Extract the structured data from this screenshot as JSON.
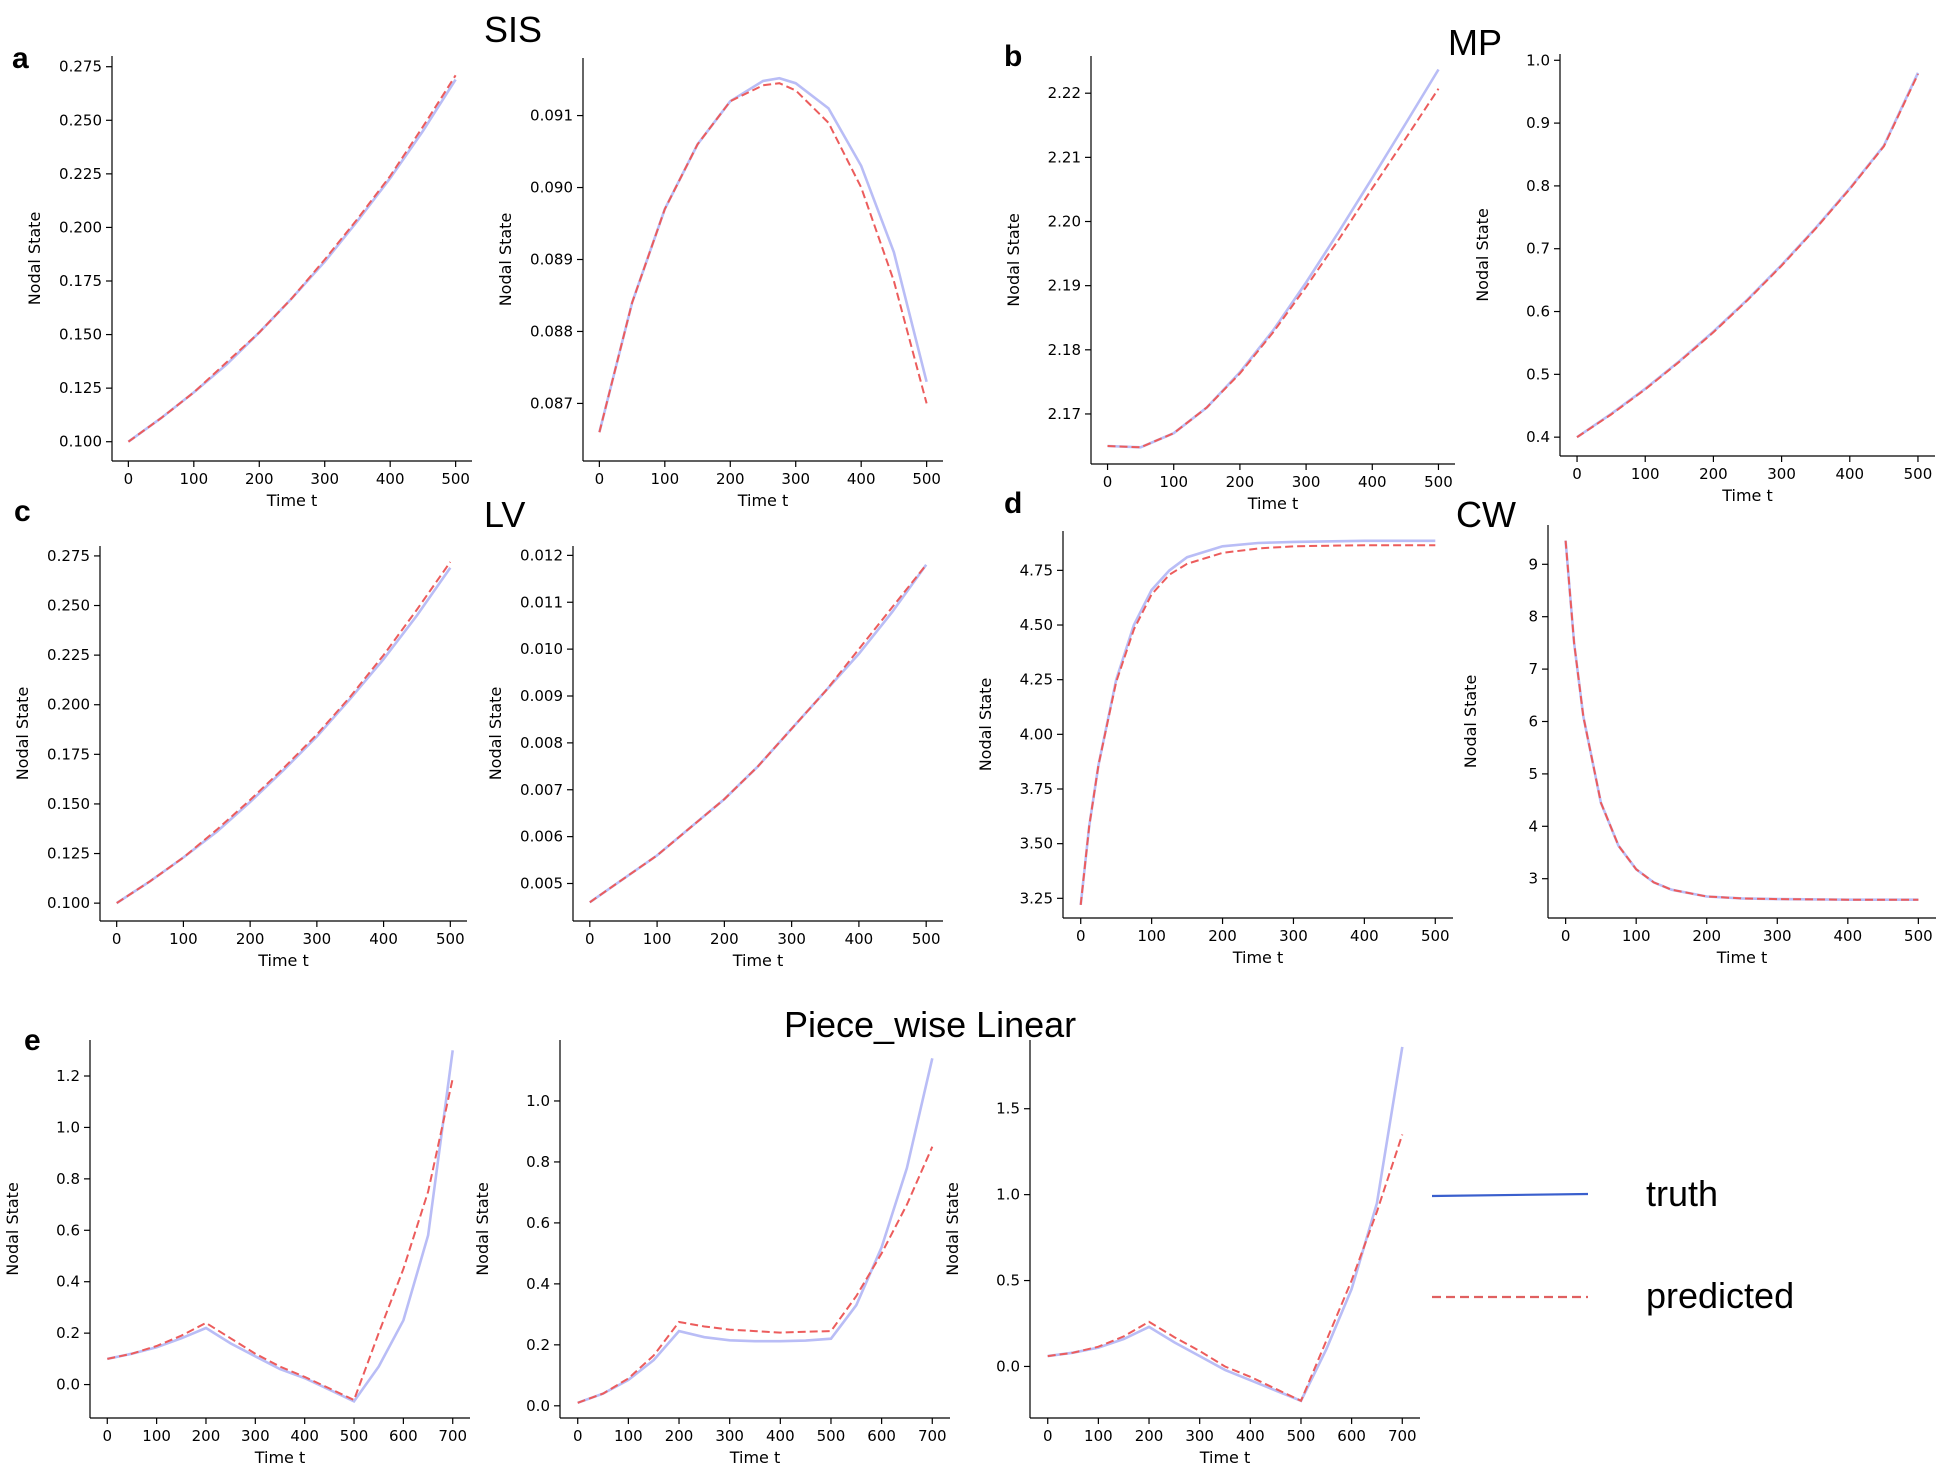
{
  "figure": {
    "panel_letters": [
      "a",
      "b",
      "c",
      "d",
      "e"
    ],
    "group_titles": [
      "SIS",
      "MP",
      "LV",
      "CW",
      "Piece_wise Linear"
    ]
  },
  "legend": {
    "truth_label": "truth",
    "predicted_label": "predicted",
    "truth_color": "#3a5fcd",
    "predicted_color": "#e06060"
  },
  "colors": {
    "truth_plot": "#b9bdf6",
    "predicted_plot": "#ec5c5c"
  },
  "chart_data": [
    {
      "type": "line",
      "xlabel": "Time t",
      "ylabel": "Nodal State",
      "xticks": [
        0,
        100,
        200,
        300,
        400,
        500
      ],
      "xlim": [
        -25,
        525
      ],
      "yticks": [
        "0.100",
        "0.125",
        "0.150",
        "0.175",
        "0.200",
        "0.225",
        "0.250",
        "0.275"
      ],
      "ylim": [
        0.091,
        0.28
      ],
      "series": [
        {
          "name": "truth",
          "x": [
            0,
            50,
            100,
            150,
            200,
            250,
            300,
            350,
            400,
            450,
            500
          ],
          "y": [
            0.1,
            0.111,
            0.123,
            0.136,
            0.151,
            0.167,
            0.184,
            0.203,
            0.223,
            0.245,
            0.269
          ]
        },
        {
          "name": "predicted",
          "x": [
            0,
            50,
            100,
            150,
            200,
            250,
            300,
            350,
            400,
            450,
            500
          ],
          "y": [
            0.1,
            0.111,
            0.123,
            0.137,
            0.151,
            0.167,
            0.185,
            0.204,
            0.224,
            0.247,
            0.271
          ]
        }
      ]
    },
    {
      "type": "line",
      "xlabel": "Time t",
      "ylabel": "Nodal State",
      "xticks": [
        0,
        100,
        200,
        300,
        400,
        500
      ],
      "xlim": [
        -25,
        525
      ],
      "yticks": [
        "0.087",
        "0.088",
        "0.089",
        "0.090",
        "0.091"
      ],
      "ylim": [
        0.0862,
        0.0918
      ],
      "series": [
        {
          "name": "truth",
          "x": [
            0,
            50,
            100,
            150,
            200,
            250,
            275,
            300,
            350,
            400,
            450,
            500
          ],
          "y": [
            0.0866,
            0.0884,
            0.0897,
            0.0906,
            0.0912,
            0.09148,
            0.09152,
            0.09145,
            0.0911,
            0.0903,
            0.0891,
            0.0873
          ]
        },
        {
          "name": "predicted",
          "x": [
            0,
            50,
            100,
            150,
            200,
            250,
            275,
            300,
            350,
            400,
            450,
            500
          ],
          "y": [
            0.0866,
            0.0884,
            0.0897,
            0.0906,
            0.0912,
            0.09142,
            0.09145,
            0.09135,
            0.0909,
            0.09,
            0.0887,
            0.087
          ]
        }
      ]
    },
    {
      "type": "line",
      "xlabel": "Time t",
      "ylabel": "Nodal State",
      "xticks": [
        0,
        100,
        200,
        300,
        400,
        500
      ],
      "xlim": [
        -25,
        525
      ],
      "yticks": [
        "2.17",
        "2.18",
        "2.19",
        "2.20",
        "2.21",
        "2.22"
      ],
      "ylim": [
        2.1622,
        2.2258
      ],
      "series": [
        {
          "name": "truth",
          "x": [
            0,
            50,
            100,
            150,
            200,
            250,
            300,
            350,
            400,
            450,
            500
          ],
          "y": [
            2.165,
            2.1648,
            2.167,
            2.171,
            2.1765,
            2.183,
            2.1905,
            2.1985,
            2.2068,
            2.2152,
            2.2237
          ]
        },
        {
          "name": "predicted",
          "x": [
            0,
            50,
            100,
            150,
            200,
            250,
            300,
            350,
            400,
            450,
            500
          ],
          "y": [
            2.165,
            2.1648,
            2.167,
            2.171,
            2.1763,
            2.1827,
            2.1898,
            2.1973,
            2.2052,
            2.2129,
            2.2207
          ]
        }
      ]
    },
    {
      "type": "line",
      "xlabel": "Time t",
      "ylabel": "Nodal State",
      "xticks": [
        0,
        100,
        200,
        300,
        400,
        500
      ],
      "xlim": [
        -25,
        525
      ],
      "yticks": [
        "0.4",
        "0.5",
        "0.6",
        "0.7",
        "0.8",
        "0.9",
        "1.0"
      ],
      "ylim": [
        0.37,
        1.01
      ],
      "series": [
        {
          "name": "truth",
          "x": [
            0,
            50,
            100,
            150,
            200,
            250,
            300,
            350,
            400,
            450,
            500
          ],
          "y": [
            0.4,
            0.437,
            0.477,
            0.521,
            0.568,
            0.619,
            0.674,
            0.733,
            0.796,
            0.864,
            0.98
          ]
        },
        {
          "name": "predicted",
          "x": [
            0,
            50,
            100,
            150,
            200,
            250,
            300,
            350,
            400,
            450,
            500
          ],
          "y": [
            0.4,
            0.436,
            0.476,
            0.52,
            0.567,
            0.618,
            0.673,
            0.732,
            0.795,
            0.863,
            0.978
          ]
        }
      ]
    },
    {
      "type": "line",
      "xlabel": "Time t",
      "ylabel": "Nodal State",
      "xticks": [
        0,
        100,
        200,
        300,
        400,
        500
      ],
      "xlim": [
        -25,
        525
      ],
      "yticks": [
        "0.100",
        "0.125",
        "0.150",
        "0.175",
        "0.200",
        "0.225",
        "0.250",
        "0.275"
      ],
      "ylim": [
        0.091,
        0.28
      ],
      "series": [
        {
          "name": "truth",
          "x": [
            0,
            50,
            100,
            150,
            200,
            250,
            300,
            350,
            400,
            450,
            500
          ],
          "y": [
            0.1,
            0.111,
            0.123,
            0.136,
            0.151,
            0.167,
            0.184,
            0.203,
            0.223,
            0.245,
            0.269
          ]
        },
        {
          "name": "predicted",
          "x": [
            0,
            50,
            100,
            150,
            200,
            250,
            300,
            350,
            400,
            450,
            500
          ],
          "y": [
            0.1,
            0.111,
            0.123,
            0.137,
            0.152,
            0.168,
            0.185,
            0.204,
            0.225,
            0.248,
            0.272
          ]
        }
      ]
    },
    {
      "type": "line",
      "xlabel": "Time t",
      "ylabel": "Nodal State",
      "xticks": [
        0,
        100,
        200,
        300,
        400,
        500
      ],
      "xlim": [
        -25,
        525
      ],
      "yticks": [
        "0.005",
        "0.006",
        "0.007",
        "0.008",
        "0.009",
        "0.010",
        "0.011",
        "0.012"
      ],
      "ylim": [
        0.0042,
        0.0122
      ],
      "series": [
        {
          "name": "truth",
          "x": [
            0,
            50,
            100,
            150,
            200,
            250,
            300,
            350,
            400,
            450,
            500
          ],
          "y": [
            0.0046,
            0.0051,
            0.0056,
            0.0062,
            0.0068,
            0.0075,
            0.0083,
            0.0091,
            0.0099,
            0.0108,
            0.0118
          ]
        },
        {
          "name": "predicted",
          "x": [
            0,
            50,
            100,
            150,
            200,
            250,
            300,
            350,
            400,
            450,
            500
          ],
          "y": [
            0.0046,
            0.0051,
            0.0056,
            0.0062,
            0.0068,
            0.0075,
            0.0083,
            0.0091,
            0.01,
            0.0109,
            0.0118
          ]
        }
      ]
    },
    {
      "type": "line",
      "xlabel": "Time t",
      "ylabel": "Nodal State",
      "xticks": [
        0,
        100,
        200,
        300,
        400,
        500
      ],
      "xlim": [
        -25,
        525
      ],
      "yticks": [
        "3.25",
        "3.50",
        "3.75",
        "4.00",
        "4.25",
        "4.50",
        "4.75"
      ],
      "ylim": [
        3.16,
        4.93
      ],
      "series": [
        {
          "name": "truth",
          "x": [
            0,
            12,
            25,
            50,
            75,
            100,
            125,
            150,
            200,
            250,
            300,
            400,
            500
          ],
          "y": [
            3.22,
            3.58,
            3.86,
            4.25,
            4.5,
            4.66,
            4.75,
            4.81,
            4.86,
            4.875,
            4.88,
            4.885,
            4.885
          ]
        },
        {
          "name": "predicted",
          "x": [
            0,
            12,
            25,
            50,
            75,
            100,
            125,
            150,
            200,
            250,
            300,
            400,
            500
          ],
          "y": [
            3.22,
            3.58,
            3.86,
            4.24,
            4.48,
            4.64,
            4.73,
            4.78,
            4.83,
            4.85,
            4.86,
            4.865,
            4.865
          ]
        }
      ]
    },
    {
      "type": "line",
      "xlabel": "Time t",
      "ylabel": "Nodal State",
      "xticks": [
        0,
        100,
        200,
        300,
        400,
        500
      ],
      "xlim": [
        -25,
        525
      ],
      "yticks": [
        "3",
        "4",
        "5",
        "6",
        "7",
        "8",
        "9"
      ],
      "ylim": [
        2.25,
        9.75
      ],
      "series": [
        {
          "name": "truth",
          "x": [
            0,
            12,
            25,
            50,
            75,
            100,
            125,
            150,
            200,
            250,
            300,
            400,
            500
          ],
          "y": [
            9.45,
            7.5,
            6.1,
            4.45,
            3.63,
            3.18,
            2.93,
            2.79,
            2.66,
            2.625,
            2.61,
            2.6,
            2.6
          ]
        },
        {
          "name": "predicted",
          "x": [
            0,
            12,
            25,
            50,
            75,
            100,
            125,
            150,
            200,
            250,
            300,
            400,
            500
          ],
          "y": [
            9.45,
            7.5,
            6.1,
            4.45,
            3.63,
            3.18,
            2.93,
            2.79,
            2.66,
            2.625,
            2.61,
            2.6,
            2.6
          ]
        }
      ]
    },
    {
      "type": "line",
      "xlabel": "Time t",
      "ylabel": "Nodal State",
      "xticks": [
        0,
        100,
        200,
        300,
        400,
        500,
        600,
        700
      ],
      "xlim": [
        -35,
        735
      ],
      "yticks": [
        "0.0",
        "0.2",
        "0.4",
        "0.6",
        "0.8",
        "1.0",
        "1.2"
      ],
      "ylim": [
        -0.13,
        1.34
      ],
      "series": [
        {
          "name": "truth",
          "x": [
            0,
            50,
            100,
            150,
            200,
            250,
            300,
            350,
            400,
            450,
            500,
            550,
            600,
            650,
            700
          ],
          "y": [
            0.1,
            0.12,
            0.145,
            0.18,
            0.22,
            0.16,
            0.11,
            0.06,
            0.025,
            -0.02,
            -0.065,
            0.07,
            0.25,
            0.58,
            1.3
          ]
        },
        {
          "name": "predicted",
          "x": [
            0,
            50,
            100,
            150,
            200,
            250,
            300,
            350,
            400,
            450,
            500,
            550,
            600,
            650,
            700
          ],
          "y": [
            0.1,
            0.12,
            0.15,
            0.19,
            0.24,
            0.18,
            0.12,
            0.07,
            0.03,
            -0.015,
            -0.06,
            0.2,
            0.45,
            0.75,
            1.19
          ]
        }
      ]
    },
    {
      "type": "line",
      "xlabel": "Time t",
      "ylabel": "Nodal State",
      "xticks": [
        0,
        100,
        200,
        300,
        400,
        500,
        600,
        700
      ],
      "xlim": [
        -35,
        735
      ],
      "yticks": [
        "0.0",
        "0.2",
        "0.4",
        "0.6",
        "0.8",
        "1.0"
      ],
      "ylim": [
        -0.04,
        1.2
      ],
      "series": [
        {
          "name": "truth",
          "x": [
            0,
            50,
            100,
            150,
            200,
            250,
            300,
            350,
            400,
            450,
            500,
            550,
            600,
            650,
            700
          ],
          "y": [
            0.01,
            0.04,
            0.085,
            0.15,
            0.245,
            0.225,
            0.215,
            0.212,
            0.212,
            0.214,
            0.22,
            0.33,
            0.52,
            0.78,
            1.14
          ]
        },
        {
          "name": "predicted",
          "x": [
            0,
            50,
            100,
            150,
            200,
            250,
            300,
            350,
            400,
            450,
            500,
            550,
            600,
            650,
            700
          ],
          "y": [
            0.01,
            0.04,
            0.09,
            0.165,
            0.275,
            0.26,
            0.25,
            0.245,
            0.24,
            0.243,
            0.245,
            0.36,
            0.5,
            0.66,
            0.85
          ]
        }
      ]
    },
    {
      "type": "line",
      "xlabel": "Time t",
      "ylabel": "Nodal State",
      "xticks": [
        0,
        100,
        200,
        300,
        400,
        500,
        600,
        700
      ],
      "xlim": [
        -35,
        735
      ],
      "yticks": [
        "0.0",
        "0.5",
        "1.0",
        "1.5"
      ],
      "ylim": [
        -0.3,
        1.9
      ],
      "series": [
        {
          "name": "truth",
          "x": [
            0,
            50,
            100,
            150,
            200,
            250,
            300,
            350,
            400,
            450,
            500,
            550,
            600,
            650,
            700
          ],
          "y": [
            0.06,
            0.08,
            0.11,
            0.16,
            0.23,
            0.14,
            0.06,
            -0.02,
            -0.08,
            -0.14,
            -0.2,
            0.1,
            0.45,
            0.95,
            1.86
          ]
        },
        {
          "name": "predicted",
          "x": [
            0,
            50,
            100,
            150,
            200,
            250,
            300,
            350,
            400,
            450,
            500,
            550,
            600,
            650,
            700
          ],
          "y": [
            0.06,
            0.08,
            0.115,
            0.175,
            0.26,
            0.17,
            0.09,
            0.0,
            -0.06,
            -0.13,
            -0.2,
            0.15,
            0.5,
            0.9,
            1.35
          ]
        }
      ]
    }
  ]
}
